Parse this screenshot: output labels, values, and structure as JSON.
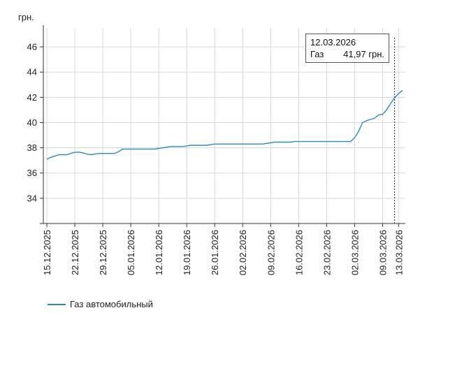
{
  "chart_data": {
    "type": "line",
    "ylabel": "грн.",
    "ylim": [
      32,
      47.5
    ],
    "yticks": [
      34,
      36,
      38,
      40,
      42,
      44,
      46
    ],
    "x_start": "15.12.2025",
    "x_end": "14.03.2026",
    "xticks": [
      "15.12.2025",
      "22.12.2025",
      "29.12.2025",
      "05.01.2026",
      "12.01.2026",
      "19.01.2026",
      "26.01.2026",
      "02.02.2026",
      "09.02.2026",
      "16.02.2026",
      "23.02.2026",
      "02.03.2026",
      "09.03.2026",
      "13.03.2026"
    ],
    "color": "#2b8cc4",
    "legend_position": "bottom-left",
    "series": [
      {
        "name": "Газ автомобильный",
        "points": [
          [
            "15.12.2025",
            37.1
          ],
          [
            "16.12.2025",
            37.25
          ],
          [
            "17.12.2025",
            37.35
          ],
          [
            "18.12.2025",
            37.45
          ],
          [
            "19.12.2025",
            37.45
          ],
          [
            "20.12.2025",
            37.45
          ],
          [
            "21.12.2025",
            37.55
          ],
          [
            "22.12.2025",
            37.65
          ],
          [
            "23.12.2025",
            37.65
          ],
          [
            "24.12.2025",
            37.6
          ],
          [
            "25.12.2025",
            37.5
          ],
          [
            "26.12.2025",
            37.45
          ],
          [
            "27.12.2025",
            37.5
          ],
          [
            "28.12.2025",
            37.55
          ],
          [
            "29.12.2025",
            37.55
          ],
          [
            "30.12.2025",
            37.55
          ],
          [
            "31.12.2025",
            37.55
          ],
          [
            "01.01.2026",
            37.55
          ],
          [
            "02.01.2026",
            37.7
          ],
          [
            "03.01.2026",
            37.9
          ],
          [
            "04.01.2026",
            37.9
          ],
          [
            "05.01.2026",
            37.9
          ],
          [
            "06.01.2026",
            37.9
          ],
          [
            "07.01.2026",
            37.9
          ],
          [
            "08.01.2026",
            37.9
          ],
          [
            "09.01.2026",
            37.9
          ],
          [
            "10.01.2026",
            37.9
          ],
          [
            "11.01.2026",
            37.9
          ],
          [
            "12.01.2026",
            37.95
          ],
          [
            "13.01.2026",
            38.0
          ],
          [
            "14.01.2026",
            38.05
          ],
          [
            "15.01.2026",
            38.1
          ],
          [
            "16.01.2026",
            38.1
          ],
          [
            "17.01.2026",
            38.1
          ],
          [
            "18.01.2026",
            38.1
          ],
          [
            "19.01.2026",
            38.15
          ],
          [
            "20.01.2026",
            38.2
          ],
          [
            "21.01.2026",
            38.2
          ],
          [
            "22.01.2026",
            38.2
          ],
          [
            "23.01.2026",
            38.2
          ],
          [
            "24.01.2026",
            38.2
          ],
          [
            "25.01.2026",
            38.25
          ],
          [
            "26.01.2026",
            38.3
          ],
          [
            "27.01.2026",
            38.3
          ],
          [
            "28.01.2026",
            38.3
          ],
          [
            "29.01.2026",
            38.3
          ],
          [
            "30.01.2026",
            38.3
          ],
          [
            "31.01.2026",
            38.3
          ],
          [
            "01.02.2026",
            38.3
          ],
          [
            "02.02.2026",
            38.3
          ],
          [
            "03.02.2026",
            38.3
          ],
          [
            "04.02.2026",
            38.3
          ],
          [
            "05.02.2026",
            38.3
          ],
          [
            "06.02.2026",
            38.3
          ],
          [
            "07.02.2026",
            38.3
          ],
          [
            "08.02.2026",
            38.35
          ],
          [
            "09.02.2026",
            38.4
          ],
          [
            "10.02.2026",
            38.45
          ],
          [
            "11.02.2026",
            38.45
          ],
          [
            "12.02.2026",
            38.45
          ],
          [
            "13.02.2026",
            38.45
          ],
          [
            "14.02.2026",
            38.45
          ],
          [
            "15.02.2026",
            38.5
          ],
          [
            "16.02.2026",
            38.5
          ],
          [
            "17.02.2026",
            38.5
          ],
          [
            "18.02.2026",
            38.5
          ],
          [
            "19.02.2026",
            38.5
          ],
          [
            "20.02.2026",
            38.5
          ],
          [
            "21.02.2026",
            38.5
          ],
          [
            "22.02.2026",
            38.5
          ],
          [
            "23.02.2026",
            38.5
          ],
          [
            "24.02.2026",
            38.5
          ],
          [
            "25.02.2026",
            38.5
          ],
          [
            "26.02.2026",
            38.5
          ],
          [
            "27.02.2026",
            38.5
          ],
          [
            "28.02.2026",
            38.5
          ],
          [
            "01.03.2026",
            38.5
          ],
          [
            "02.03.2026",
            38.8
          ],
          [
            "03.03.2026",
            39.3
          ],
          [
            "04.03.2026",
            40.0
          ],
          [
            "05.03.2026",
            40.15
          ],
          [
            "06.03.2026",
            40.25
          ],
          [
            "07.03.2026",
            40.35
          ],
          [
            "08.03.2026",
            40.6
          ],
          [
            "09.03.2026",
            40.65
          ],
          [
            "10.03.2026",
            41.0
          ],
          [
            "11.03.2026",
            41.5
          ],
          [
            "12.03.2026",
            41.97
          ],
          [
            "13.03.2026",
            42.3
          ],
          [
            "14.03.2026",
            42.55
          ]
        ]
      }
    ],
    "cursor": {
      "date": "12.03.2026",
      "date_label": "12.03.2026",
      "series_label": "Газ",
      "value_label": "41,97 грн."
    }
  }
}
